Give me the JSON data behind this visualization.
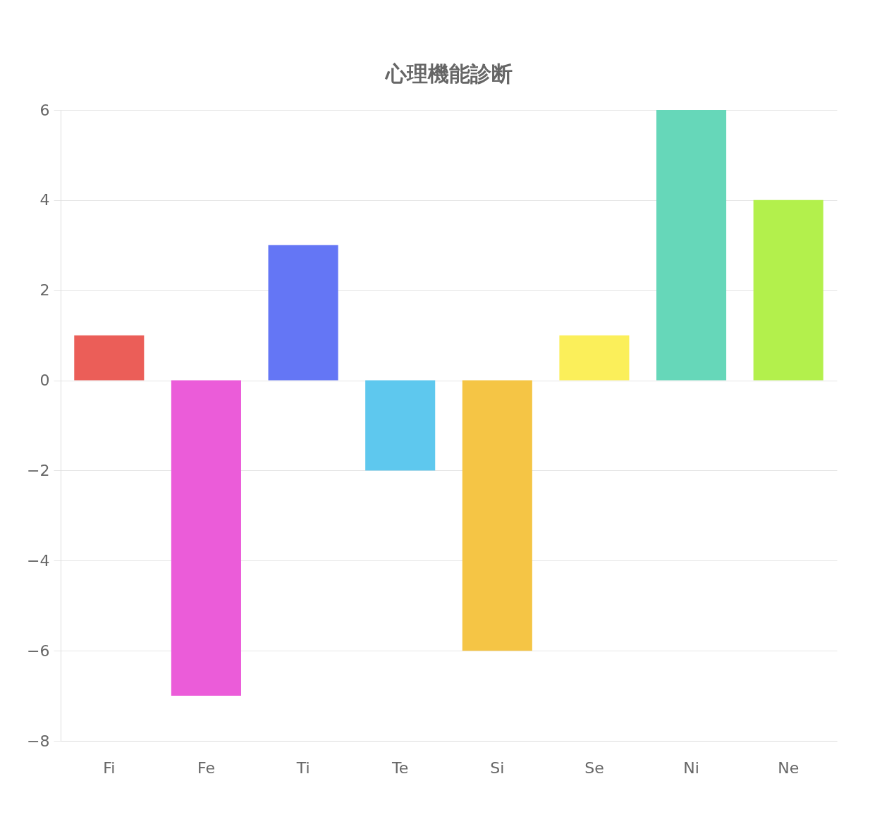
{
  "chart_data": {
    "type": "bar",
    "title": "心理機能診断",
    "categories": [
      "Fi",
      "Fe",
      "Ti",
      "Te",
      "Si",
      "Se",
      "Ni",
      "Ne"
    ],
    "values": [
      1,
      -7,
      3,
      -2,
      -6,
      1,
      6,
      4
    ],
    "colors": [
      "#eb5e58",
      "#eb5cd9",
      "#6476f5",
      "#5ec8ee",
      "#f5c545",
      "#fbef5a",
      "#66d7b9",
      "#b3f04c"
    ],
    "ylim": [
      -8,
      6
    ],
    "yticks": [
      -8,
      -6,
      -4,
      -2,
      0,
      2,
      4,
      6
    ],
    "grid": "y",
    "legend": false
  }
}
